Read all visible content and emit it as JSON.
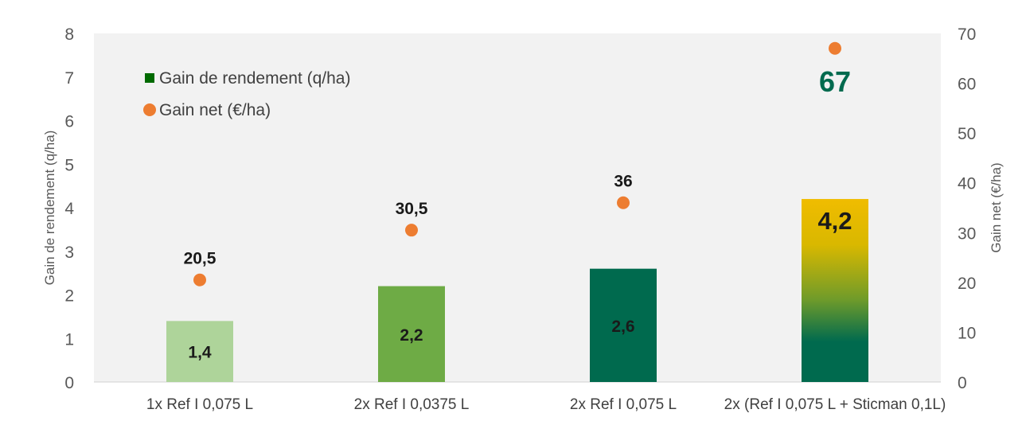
{
  "chart_data": {
    "type": "bar",
    "categories": [
      "1x Ref I  0,075 L",
      "2x Ref I  0,0375 L",
      "2x Ref I  0,075 L",
      "2x (Ref I  0,075 L + Sticman 0,1L)"
    ],
    "series": [
      {
        "name": "Gain de rendement (q/ha)",
        "type": "bar",
        "axis": "left",
        "values": [
          1.4,
          2.2,
          2.6,
          4.2
        ],
        "labels": [
          "1,4",
          "2,2",
          "2,6",
          "4,2"
        ],
        "colors": [
          "#aed49a",
          "#6eab45",
          "#006a4e",
          "gradient-gold-to-green"
        ]
      },
      {
        "name": "Gain net (€/ha)",
        "type": "scatter",
        "axis": "right",
        "values": [
          20.5,
          30.5,
          36,
          67
        ],
        "labels": [
          "20,5",
          "30,5",
          "36",
          "67"
        ],
        "color": "#ed7d31"
      }
    ],
    "ylabel": "Gain de rendement (q/ha)",
    "y2label": "Gain net (€/ha)",
    "ylim": [
      0,
      8
    ],
    "y2lim": [
      0,
      70
    ],
    "yticks": [
      "0",
      "1",
      "2",
      "3",
      "4",
      "5",
      "6",
      "7",
      "8"
    ],
    "y2ticks": [
      "0",
      "10",
      "20",
      "30",
      "40",
      "50",
      "60",
      "70"
    ],
    "legend_position": "top-left",
    "grid": false,
    "colors": {
      "plot_bg": "#f2f2f2",
      "highlight_text": "#006a4e",
      "gradient_top": "#f0bc00",
      "gradient_bottom": "#006a4e"
    }
  }
}
